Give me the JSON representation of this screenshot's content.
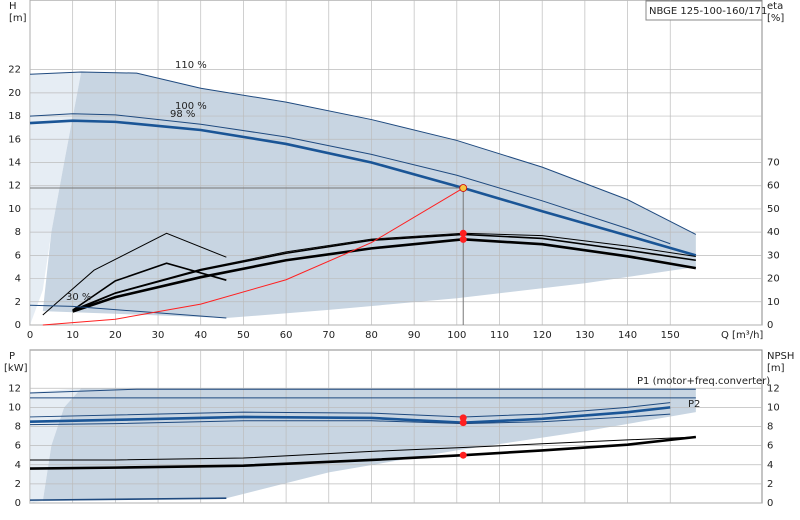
{
  "chart_data": [
    {
      "type": "line",
      "title": "NBGE 125-100-160/171",
      "ylabel": "H",
      "yunit": "[m]",
      "y2label": "eta",
      "y2unit": "[%]",
      "xlabel": "Q [m³/h]",
      "xlim": [
        0,
        171.5
      ],
      "xticks": [
        0,
        10,
        20,
        30,
        40,
        50,
        60,
        70,
        80,
        90,
        100,
        110,
        120,
        130,
        140,
        150
      ],
      "ylim": [
        0,
        28
      ],
      "yticks": [
        0,
        2,
        4,
        6,
        8,
        10,
        12,
        14,
        16,
        18,
        20,
        22
      ],
      "y2lim": [
        0,
        140
      ],
      "y2ticks": [
        0,
        10,
        20,
        30,
        40,
        50,
        60,
        70
      ],
      "grid": true,
      "annotations": [
        "110 %",
        "100 %",
        "98 %",
        "30 %"
      ],
      "regions": [
        {
          "color": "#e6edf4",
          "x": [
            0,
            0,
            12,
            8,
            5,
            3
          ],
          "values": [
            0,
            21.6,
            21.8,
            14,
            8,
            3
          ]
        },
        {
          "color": "#c8d5e2",
          "x": [
            12,
            25,
            40,
            60,
            80,
            100,
            120,
            140,
            156,
            156,
            130,
            100,
            70,
            46,
            3,
            5,
            8
          ],
          "values": [
            21.8,
            21.7,
            20.4,
            19.2,
            17.7,
            15.9,
            13.6,
            10.8,
            7.8,
            5.0,
            3.6,
            2.3,
            1.3,
            0.6,
            1.2,
            8,
            14
          ]
        }
      ],
      "series": [
        {
          "color": "#1f4a7f",
          "style": "thin",
          "x": [
            0,
            12,
            25,
            40,
            60,
            80,
            100,
            120,
            140,
            156
          ],
          "values": [
            21.6,
            21.8,
            21.7,
            20.4,
            19.2,
            17.7,
            15.9,
            13.6,
            10.8,
            7.8
          ]
        },
        {
          "color": "#1f4a7f",
          "style": "thin",
          "x": [
            0,
            10,
            20,
            40,
            60,
            80,
            100,
            120,
            140,
            150
          ],
          "values": [
            18.0,
            18.2,
            18.1,
            17.3,
            16.2,
            14.7,
            12.9,
            10.7,
            8.3,
            7.0
          ]
        },
        {
          "color": "#1a5596",
          "style": "thick",
          "x": [
            0,
            10,
            20,
            40,
            60,
            80,
            101.5,
            120,
            140,
            156
          ],
          "values": [
            17.4,
            17.6,
            17.5,
            16.8,
            15.6,
            14.0,
            11.8,
            9.8,
            7.7,
            6.0
          ]
        },
        {
          "color": "#000000",
          "style": "thin",
          "axis": "y2",
          "x": [
            3,
            15,
            32,
            46
          ],
          "values": [
            4.3,
            23.6,
            39.5,
            29.2
          ]
        },
        {
          "color": "#000000",
          "style": "medium",
          "axis": "y2",
          "x": [
            10,
            20,
            32,
            46
          ],
          "values": [
            6.4,
            19,
            26.6,
            19.3
          ]
        },
        {
          "color": "#000000",
          "style": "thin",
          "axis": "y2",
          "x": [
            10,
            20,
            40,
            60,
            80,
            101.5,
            120,
            140,
            156
          ],
          "values": [
            6.5,
            13.9,
            24,
            31.5,
            37,
            39.5,
            38.5,
            34,
            29.5
          ]
        },
        {
          "color": "#000000",
          "style": "medium",
          "axis": "y2",
          "x": [
            10,
            20,
            40,
            60,
            80,
            101.5,
            120,
            140,
            156
          ],
          "values": [
            6,
            13.7,
            23.6,
            30.9,
            36.5,
            39,
            37.3,
            32.2,
            27.9
          ]
        },
        {
          "color": "#000000",
          "style": "thick",
          "axis": "y2",
          "x": [
            10,
            20,
            40,
            60,
            80,
            101.5,
            120,
            140,
            156
          ],
          "values": [
            5.8,
            12,
            20.6,
            27.9,
            33,
            36.9,
            34.8,
            29.6,
            24.5
          ]
        },
        {
          "color": "#1f4a7f",
          "style": "thin",
          "x": [
            0,
            10,
            46
          ],
          "values": [
            1.7,
            1.6,
            0.6
          ]
        },
        {
          "color": "#ff2020",
          "style": "thin",
          "x": [
            3,
            20,
            40,
            60,
            80,
            101.5
          ],
          "values": [
            0,
            0.5,
            1.8,
            3.9,
            7.1,
            11.8
          ]
        }
      ],
      "points": [
        {
          "color": "#f5c542",
          "guides": true,
          "x": 101.5,
          "value": 11.8
        },
        {
          "color": "#ff2020",
          "axis": "y2",
          "x": 101.5,
          "value": 39.5
        },
        {
          "color": "#ff2020",
          "axis": "y2",
          "x": 101.5,
          "value": 36.9
        }
      ]
    },
    {
      "type": "line",
      "ylabel": "P",
      "yunit": "[kW]",
      "y2label": "NPSH",
      "y2unit": "[m]",
      "ylim": [
        0,
        16
      ],
      "yticks": [
        0,
        2,
        4,
        6,
        8,
        10,
        12
      ],
      "y2lim": [
        0,
        16
      ],
      "y2ticks": [
        0,
        2,
        4,
        6,
        8,
        10,
        12
      ],
      "grid": true,
      "annotations": [
        "P1 (motor+freq.converter)",
        "P2"
      ],
      "regions": [
        {
          "color": "#e6edf4",
          "x": [
            0,
            0,
            12,
            8,
            5,
            3
          ],
          "values": [
            0,
            11.6,
            12,
            10,
            6,
            0.2
          ]
        },
        {
          "color": "#c8d5e2",
          "x": [
            12,
            156,
            156,
            130,
            100,
            70,
            46,
            3,
            5,
            8
          ],
          "values": [
            12,
            12,
            9.5,
            7.5,
            5.5,
            3.2,
            0.5,
            0.2,
            6,
            10
          ]
        }
      ],
      "series": [
        {
          "color": "#1f4a7f",
          "style": "thin",
          "x": [
            0,
            25,
            156
          ],
          "values": [
            11.5,
            11.9,
            11.9
          ]
        },
        {
          "color": "#1f4a7f",
          "style": "thin",
          "x": [
            0,
            156
          ],
          "values": [
            11.0,
            11.0
          ]
        },
        {
          "color": "#1f4a7f",
          "style": "thin",
          "x": [
            0,
            20,
            50,
            80,
            101.5,
            120,
            140,
            150
          ],
          "values": [
            9.0,
            9.2,
            9.5,
            9.4,
            9.0,
            9.3,
            10.0,
            10.5
          ]
        },
        {
          "color": "#1a5596",
          "style": "thick",
          "x": [
            0,
            20,
            50,
            80,
            101.5,
            120,
            140,
            150
          ],
          "values": [
            8.5,
            8.7,
            9.0,
            8.9,
            8.4,
            8.8,
            9.5,
            10.0
          ]
        },
        {
          "color": "#1f4a7f",
          "style": "thin",
          "x": [
            0,
            20,
            50,
            80,
            101.5,
            120,
            140,
            150
          ],
          "values": [
            8.2,
            8.3,
            8.6,
            8.6,
            8.3,
            8.5,
            9.0,
            9.3
          ]
        },
        {
          "color": "#000000",
          "style": "thin",
          "axis": "y2",
          "x": [
            0,
            20,
            50,
            80,
            101.5,
            120,
            140,
            156
          ],
          "values": [
            4.5,
            4.5,
            4.7,
            5.4,
            5.8,
            6.2,
            6.6,
            6.9
          ]
        },
        {
          "color": "#000000",
          "style": "thick",
          "axis": "y2",
          "x": [
            0,
            20,
            50,
            80,
            101.5,
            120,
            140,
            156
          ],
          "values": [
            3.6,
            3.7,
            3.9,
            4.5,
            5.0,
            5.5,
            6.1,
            6.9
          ]
        },
        {
          "color": "#1f4a7f",
          "style": "medium",
          "x": [
            0,
            46
          ],
          "values": [
            0.3,
            0.5
          ]
        }
      ],
      "points": [
        {
          "color": "#ff2020",
          "x": 101.5,
          "value": 8.9
        },
        {
          "color": "#ff2020",
          "x": 101.5,
          "value": 8.4
        },
        {
          "color": "#ff2020",
          "axis": "y2",
          "x": 101.5,
          "value": 5.0
        }
      ]
    }
  ]
}
